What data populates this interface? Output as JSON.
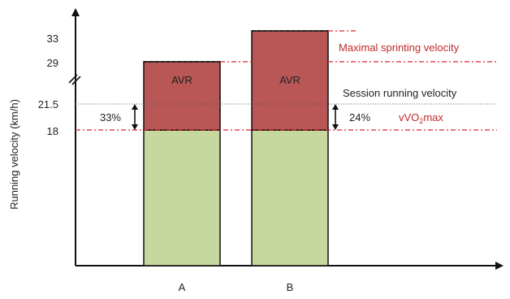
{
  "chart_data": {
    "type": "bar",
    "ylabel": "Running velocity (km/h)",
    "categories": [
      "A",
      "B"
    ],
    "yticks": [
      "33",
      "29",
      "21.5",
      "18"
    ],
    "axis_break": true,
    "colors": {
      "base": "#c6d89e",
      "avr": "#b95656",
      "red_line": "#d9282f",
      "dotted_line": "#555555"
    },
    "bars": [
      {
        "category": "A",
        "vvo2max": 18,
        "max_sprint": 29,
        "session_velocity": 21.5,
        "segment_label": "AVR",
        "pct_label": "33%"
      },
      {
        "category": "B",
        "vvo2max": 18,
        "max_sprint": 33,
        "session_velocity": 21.5,
        "segment_label": "AVR",
        "pct_label": "24%"
      }
    ],
    "annotations": {
      "max_sprint": "Maximal sprinting velocity",
      "session": "Session running velocity",
      "vvo2max_prefix": "vVO",
      "vvo2max_sub": "2",
      "vvo2max_suffix": "max"
    }
  }
}
